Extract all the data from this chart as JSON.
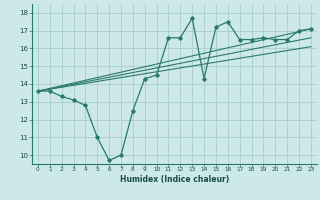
{
  "xlabel": "Humidex (Indice chaleur)",
  "ylabel": "",
  "bg_color": "#cce8e8",
  "grid_color": "#aacccc",
  "line_color": "#2a7a6a",
  "xlim": [
    -0.5,
    23.5
  ],
  "ylim": [
    9.5,
    18.5
  ],
  "xticks": [
    0,
    1,
    2,
    3,
    4,
    5,
    6,
    7,
    8,
    9,
    10,
    11,
    12,
    13,
    14,
    15,
    16,
    17,
    18,
    19,
    20,
    21,
    22,
    23
  ],
  "yticks": [
    10,
    11,
    12,
    13,
    14,
    15,
    16,
    17,
    18
  ],
  "main_line": {
    "x": [
      0,
      1,
      2,
      3,
      4,
      5,
      6,
      7,
      8,
      9,
      10,
      11,
      12,
      13,
      14,
      15,
      16,
      17,
      18,
      19,
      20,
      21,
      22,
      23
    ],
    "y": [
      13.6,
      13.6,
      13.3,
      13.1,
      12.8,
      11.0,
      9.7,
      10.0,
      12.5,
      14.3,
      14.5,
      16.6,
      16.6,
      17.7,
      14.3,
      17.2,
      17.5,
      16.5,
      16.5,
      16.6,
      16.5,
      16.5,
      17.0,
      17.1
    ]
  },
  "line2": {
    "x": [
      0,
      23
    ],
    "y": [
      13.6,
      17.1
    ]
  },
  "line3": {
    "x": [
      0,
      23
    ],
    "y": [
      13.6,
      16.6
    ]
  },
  "line4": {
    "x": [
      0,
      23
    ],
    "y": [
      13.6,
      16.1
    ]
  }
}
